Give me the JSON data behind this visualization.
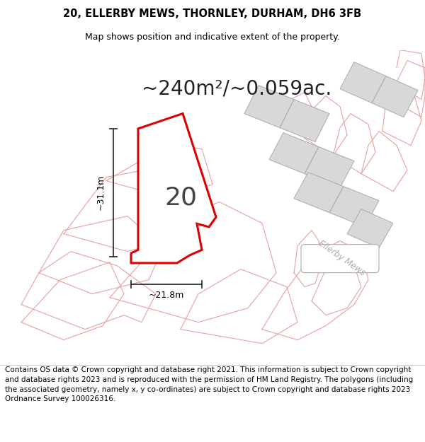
{
  "title_line1": "20, ELLERBY MEWS, THORNLEY, DURHAM, DH6 3FB",
  "title_line2": "Map shows position and indicative extent of the property.",
  "area_text": "~240m²/~0.059ac.",
  "label_20": "20",
  "dim_width": "~21.8m",
  "dim_height": "~31.1m",
  "road_label": "Ellerby Mews",
  "footer_text": "Contains OS data © Crown copyright and database right 2021. This information is subject to Crown copyright and database rights 2023 and is reproduced with the permission of HM Land Registry. The polygons (including the associated geometry, namely x, y co-ordinates) are subject to Crown copyright and database rights 2023 Ordnance Survey 100026316.",
  "bg_color": "#ffffff",
  "map_bg": "#ffffff",
  "plot_fill": "#ffffff",
  "plot_edge": "#dd0000",
  "nbr_fill": "#d8d8d8",
  "nbr_edge": "#aaaaaa",
  "pink": "#e8a0a0",
  "dim_color": "#333333",
  "text_color": "#000000",
  "road_text_color": "#aaaaaa",
  "title_fs": 10.5,
  "area_fs": 20,
  "num_fs": 26,
  "foot_fs": 7.5,
  "dim_fs": 9
}
